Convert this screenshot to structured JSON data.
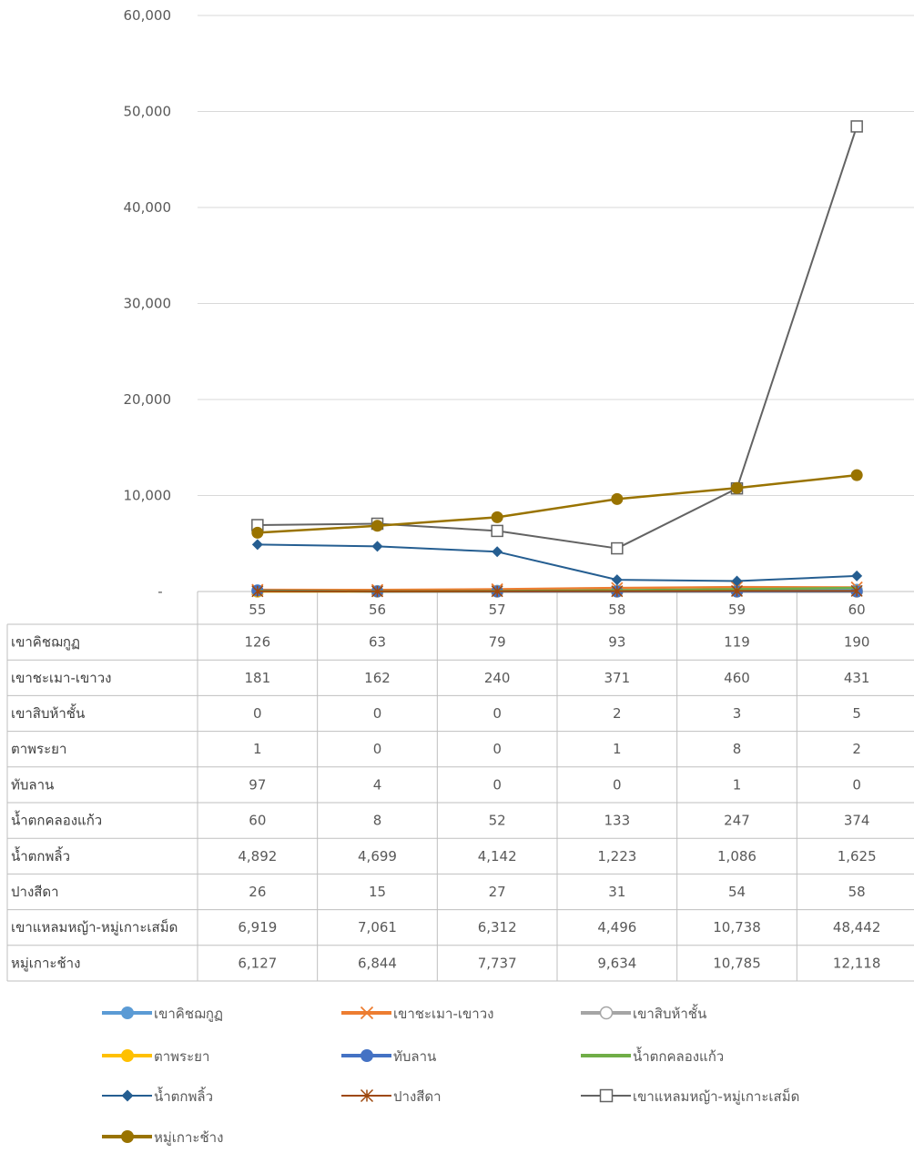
{
  "chart_data": {
    "type": "line",
    "categories": [
      "55",
      "56",
      "57",
      "58",
      "59",
      "60"
    ],
    "ylim": [
      0,
      60000
    ],
    "y_ticks": [
      {
        "value": 0,
        "label": "-"
      },
      {
        "value": 10000,
        "label": "10,000"
      },
      {
        "value": 20000,
        "label": "20,000"
      },
      {
        "value": 30000,
        "label": "30,000"
      },
      {
        "value": 40000,
        "label": "40,000"
      },
      {
        "value": 50000,
        "label": "50,000"
      },
      {
        "value": 60000,
        "label": "60,000"
      }
    ],
    "grid": true,
    "legend_position": "bottom",
    "data_table": true,
    "series": [
      {
        "name": "เขาคิชฌกูฏ",
        "values": [
          126,
          63,
          79,
          93,
          119,
          190
        ],
        "display": [
          "126",
          "63",
          "79",
          "93",
          "119",
          "190"
        ],
        "color": "#5B9BD5",
        "marker": "circle"
      },
      {
        "name": "เขาชะเมา-เขาวง",
        "values": [
          181,
          162,
          240,
          371,
          460,
          431
        ],
        "display": [
          "181",
          "162",
          "240",
          "371",
          "460",
          "431"
        ],
        "color": "#ED7D31",
        "marker": "x"
      },
      {
        "name": "เขาสิบห้าชั้น",
        "values": [
          0,
          0,
          0,
          2,
          3,
          5
        ],
        "display": [
          "0",
          "0",
          "0",
          "2",
          "3",
          "5"
        ],
        "color": "#A5A5A5",
        "marker": "circle-open"
      },
      {
        "name": "ตาพระยา",
        "values": [
          1,
          0,
          0,
          1,
          8,
          2
        ],
        "display": [
          "1",
          "0",
          "0",
          "1",
          "8",
          "2"
        ],
        "color": "#FFC000",
        "marker": "circle"
      },
      {
        "name": "ทับลาน",
        "values": [
          97,
          4,
          0,
          0,
          1,
          0
        ],
        "display": [
          "97",
          "4",
          "0",
          "0",
          "1",
          "0"
        ],
        "color": "#4472C4",
        "marker": "circle"
      },
      {
        "name": "น้ำตกคลองแก้ว",
        "values": [
          60,
          8,
          52,
          133,
          247,
          374
        ],
        "display": [
          "60",
          "8",
          "52",
          "133",
          "247",
          "374"
        ],
        "color": "#70AD47",
        "marker": "none"
      },
      {
        "name": "น้ำตกพลิ้ว",
        "values": [
          4892,
          4699,
          4142,
          1223,
          1086,
          1625
        ],
        "display": [
          "4,892",
          "4,699",
          "4,142",
          "1,223",
          "1,086",
          "1,625"
        ],
        "color": "#255E91",
        "marker": "diamond"
      },
      {
        "name": "ปางสีดา",
        "values": [
          26,
          15,
          27,
          31,
          54,
          58
        ],
        "display": [
          "26",
          "15",
          "27",
          "31",
          "54",
          "58"
        ],
        "color": "#9E480E",
        "marker": "star"
      },
      {
        "name": "เขาแหลมหญ้า-หมู่เกาะเสม็ด",
        "values": [
          6919,
          7061,
          6312,
          4496,
          10738,
          48442
        ],
        "display": [
          "6,919",
          "7,061",
          "6,312",
          "4,496",
          "10,738",
          "48,442"
        ],
        "color": "#636363",
        "marker": "square-open"
      },
      {
        "name": "หมู่เกาะช้าง",
        "values": [
          6127,
          6844,
          7737,
          9634,
          10785,
          12118
        ],
        "display": [
          "6,127",
          "6,844",
          "7,737",
          "9,634",
          "10,785",
          "12,118"
        ],
        "color": "#997300",
        "marker": "circle"
      }
    ]
  }
}
